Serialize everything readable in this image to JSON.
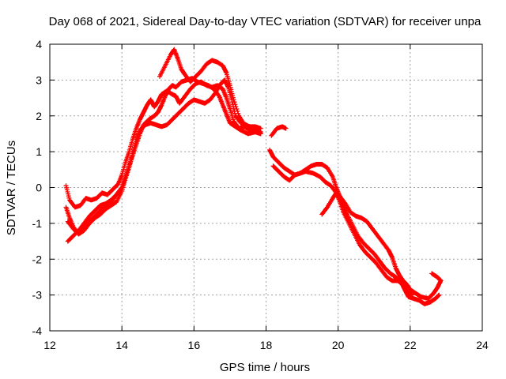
{
  "chart_data": {
    "type": "scatter",
    "title": "Day 068 of 2021, Sidereal Day-to-day VTEC variation (SDTVAR) for receiver unpa",
    "xlabel": "GPS time / hours",
    "ylabel": "SDTVAR / TECUs",
    "xlim": [
      12,
      24
    ],
    "ylim": [
      -4,
      4
    ],
    "xticks": [
      "12",
      "14",
      "16",
      "18",
      "20",
      "22",
      "24"
    ],
    "yticks": [
      "4",
      "3",
      "2",
      "1",
      "0",
      "-1",
      "-2",
      "-3",
      "-4"
    ],
    "grid": true,
    "marker": "plus",
    "color": "#ff0000",
    "series": [
      {
        "name": "track-1",
        "points": [
          [
            12.45,
            0.05
          ],
          [
            12.55,
            -0.35
          ],
          [
            12.7,
            -0.55
          ],
          [
            12.85,
            -0.5
          ],
          [
            13.0,
            -0.3
          ],
          [
            13.15,
            -0.35
          ],
          [
            13.3,
            -0.3
          ],
          [
            13.45,
            -0.15
          ],
          [
            13.6,
            -0.2
          ],
          [
            13.75,
            -0.05
          ],
          [
            13.9,
            0.1
          ],
          [
            14.0,
            0.35
          ],
          [
            14.1,
            0.7
          ],
          [
            14.2,
            1.0
          ],
          [
            14.3,
            1.35
          ],
          [
            14.4,
            1.65
          ],
          [
            14.5,
            1.9
          ],
          [
            14.6,
            2.1
          ],
          [
            14.7,
            2.3
          ],
          [
            14.8,
            2.45
          ],
          [
            14.9,
            2.25
          ],
          [
            15.0,
            2.4
          ],
          [
            15.1,
            2.6
          ],
          [
            15.25,
            2.7
          ],
          [
            15.4,
            2.6
          ],
          [
            15.5,
            2.55
          ],
          [
            15.6,
            2.35
          ],
          [
            15.75,
            2.55
          ],
          [
            15.9,
            2.75
          ],
          [
            16.05,
            2.9
          ],
          [
            16.2,
            2.95
          ],
          [
            16.35,
            2.85
          ],
          [
            16.5,
            2.8
          ],
          [
            16.65,
            2.85
          ],
          [
            16.8,
            2.75
          ],
          [
            16.9,
            2.5
          ],
          [
            17.0,
            2.2
          ],
          [
            17.1,
            1.85
          ],
          [
            17.25,
            1.65
          ],
          [
            17.4,
            1.7
          ],
          [
            17.55,
            1.6
          ],
          [
            17.7,
            1.65
          ],
          [
            17.85,
            1.55
          ]
        ]
      },
      {
        "name": "track-2",
        "points": [
          [
            12.5,
            -1.5
          ],
          [
            12.65,
            -1.35
          ],
          [
            12.8,
            -1.2
          ],
          [
            12.95,
            -1.0
          ],
          [
            13.1,
            -0.8
          ],
          [
            13.25,
            -0.65
          ],
          [
            13.4,
            -0.5
          ],
          [
            13.55,
            -0.45
          ],
          [
            13.7,
            -0.35
          ],
          [
            13.85,
            -0.2
          ],
          [
            14.0,
            0.0
          ],
          [
            14.1,
            0.3
          ],
          [
            14.2,
            0.6
          ],
          [
            14.3,
            0.9
          ],
          [
            14.4,
            1.2
          ],
          [
            14.5,
            1.5
          ],
          [
            14.6,
            1.75
          ],
          [
            14.75,
            1.9
          ],
          [
            14.9,
            2.0
          ],
          [
            15.0,
            2.1
          ],
          [
            15.1,
            2.3
          ],
          [
            15.2,
            2.55
          ],
          [
            15.3,
            2.75
          ],
          [
            15.4,
            2.85
          ],
          [
            15.5,
            2.8
          ],
          [
            15.65,
            2.95
          ],
          [
            15.8,
            3.0
          ],
          [
            15.95,
            3.05
          ],
          [
            16.1,
            2.95
          ],
          [
            16.25,
            2.9
          ],
          [
            16.4,
            2.85
          ],
          [
            16.55,
            2.75
          ],
          [
            16.7,
            2.55
          ],
          [
            16.8,
            2.3
          ],
          [
            16.9,
            2.05
          ],
          [
            17.0,
            1.8
          ],
          [
            17.15,
            1.7
          ],
          [
            17.3,
            1.6
          ],
          [
            17.5,
            1.5
          ],
          [
            17.7,
            1.55
          ],
          [
            17.85,
            1.5
          ]
        ]
      },
      {
        "name": "track-3",
        "points": [
          [
            12.5,
            -0.95
          ],
          [
            12.65,
            -1.15
          ],
          [
            12.8,
            -1.3
          ],
          [
            12.95,
            -1.2
          ],
          [
            13.1,
            -1.0
          ],
          [
            13.25,
            -0.85
          ],
          [
            13.4,
            -0.75
          ],
          [
            13.55,
            -0.6
          ],
          [
            13.7,
            -0.5
          ],
          [
            13.85,
            -0.4
          ],
          [
            14.0,
            -0.1
          ],
          [
            14.1,
            0.25
          ],
          [
            14.2,
            0.55
          ],
          [
            14.3,
            0.95
          ],
          [
            14.4,
            1.35
          ],
          [
            14.5,
            1.6
          ],
          [
            14.65,
            1.75
          ],
          [
            14.8,
            1.8
          ],
          [
            14.95,
            1.75
          ],
          [
            15.1,
            1.7
          ],
          [
            15.25,
            1.75
          ],
          [
            15.4,
            1.9
          ],
          [
            15.55,
            2.05
          ],
          [
            15.7,
            2.2
          ],
          [
            15.85,
            2.35
          ],
          [
            16.0,
            2.45
          ],
          [
            16.15,
            2.4
          ],
          [
            16.3,
            2.35
          ],
          [
            16.45,
            2.45
          ],
          [
            16.6,
            2.65
          ],
          [
            16.75,
            2.9
          ],
          [
            16.85,
            3.0
          ],
          [
            16.95,
            2.8
          ],
          [
            17.05,
            2.45
          ],
          [
            17.15,
            2.0
          ],
          [
            17.3,
            1.8
          ],
          [
            17.45,
            1.75
          ],
          [
            17.6,
            1.65
          ],
          [
            17.75,
            1.6
          ],
          [
            17.85,
            1.5
          ]
        ]
      },
      {
        "name": "track-4",
        "points": [
          [
            15.05,
            3.1
          ],
          [
            15.2,
            3.4
          ],
          [
            15.35,
            3.7
          ],
          [
            15.45,
            3.85
          ],
          [
            15.55,
            3.6
          ],
          [
            15.65,
            3.3
          ],
          [
            15.75,
            3.15
          ],
          [
            15.9,
            2.95
          ],
          [
            16.05,
            3.1
          ],
          [
            16.2,
            3.25
          ],
          [
            16.35,
            3.45
          ],
          [
            16.5,
            3.55
          ],
          [
            16.65,
            3.5
          ],
          [
            16.8,
            3.4
          ],
          [
            16.9,
            3.2
          ],
          [
            17.0,
            2.85
          ],
          [
            17.1,
            2.45
          ],
          [
            17.25,
            2.0
          ],
          [
            17.4,
            1.75
          ],
          [
            17.55,
            1.7
          ],
          [
            17.7,
            1.7
          ],
          [
            17.85,
            1.65
          ]
        ]
      },
      {
        "name": "track-5",
        "points": [
          [
            18.15,
            1.45
          ],
          [
            18.3,
            1.65
          ],
          [
            18.45,
            1.7
          ],
          [
            18.55,
            1.65
          ]
        ]
      },
      {
        "name": "track-6",
        "points": [
          [
            18.1,
            1.05
          ],
          [
            18.2,
            0.85
          ],
          [
            18.35,
            0.7
          ],
          [
            18.5,
            0.55
          ],
          [
            18.65,
            0.45
          ],
          [
            18.8,
            0.35
          ],
          [
            18.95,
            0.4
          ],
          [
            19.1,
            0.5
          ],
          [
            19.25,
            0.6
          ],
          [
            19.4,
            0.65
          ],
          [
            19.55,
            0.65
          ],
          [
            19.7,
            0.55
          ],
          [
            19.85,
            0.3
          ],
          [
            19.95,
            0.0
          ],
          [
            20.05,
            -0.25
          ],
          [
            20.15,
            -0.5
          ],
          [
            20.25,
            -0.75
          ],
          [
            20.4,
            -1.05
          ],
          [
            20.55,
            -1.35
          ],
          [
            20.7,
            -1.55
          ],
          [
            20.85,
            -1.7
          ],
          [
            21.0,
            -1.85
          ],
          [
            21.15,
            -2.05
          ],
          [
            21.3,
            -2.25
          ],
          [
            21.45,
            -2.4
          ],
          [
            21.6,
            -2.5
          ],
          [
            21.75,
            -2.65
          ],
          [
            21.85,
            -2.85
          ],
          [
            21.95,
            -3.05
          ],
          [
            22.1,
            -3.1
          ],
          [
            22.25,
            -3.15
          ],
          [
            22.4,
            -3.25
          ],
          [
            22.55,
            -3.2
          ],
          [
            22.7,
            -3.1
          ],
          [
            22.8,
            -3.0
          ]
        ]
      },
      {
        "name": "track-7",
        "points": [
          [
            18.2,
            0.6
          ],
          [
            18.35,
            0.45
          ],
          [
            18.5,
            0.3
          ],
          [
            18.65,
            0.2
          ],
          [
            18.8,
            0.35
          ],
          [
            18.95,
            0.4
          ],
          [
            19.1,
            0.45
          ],
          [
            19.3,
            0.4
          ],
          [
            19.5,
            0.3
          ],
          [
            19.65,
            0.15
          ],
          [
            19.8,
            0.05
          ],
          [
            19.95,
            -0.15
          ],
          [
            20.05,
            -0.4
          ],
          [
            20.15,
            -0.7
          ],
          [
            20.3,
            -1.0
          ],
          [
            20.45,
            -1.3
          ],
          [
            20.6,
            -1.6
          ],
          [
            20.75,
            -1.8
          ],
          [
            20.9,
            -1.95
          ],
          [
            21.05,
            -2.1
          ],
          [
            21.2,
            -2.3
          ],
          [
            21.35,
            -2.5
          ],
          [
            21.5,
            -2.6
          ],
          [
            21.65,
            -2.6
          ],
          [
            21.8,
            -2.7
          ],
          [
            21.9,
            -2.9
          ],
          [
            22.05,
            -3.0
          ]
        ]
      },
      {
        "name": "track-8",
        "points": [
          [
            19.55,
            -0.75
          ],
          [
            19.7,
            -0.55
          ],
          [
            19.85,
            -0.3
          ],
          [
            19.95,
            -0.15
          ],
          [
            20.05,
            -0.25
          ],
          [
            20.2,
            -0.45
          ],
          [
            20.35,
            -0.7
          ],
          [
            20.5,
            -0.8
          ],
          [
            20.65,
            -0.85
          ],
          [
            20.8,
            -0.95
          ],
          [
            20.95,
            -1.15
          ],
          [
            21.1,
            -1.35
          ],
          [
            21.25,
            -1.55
          ],
          [
            21.4,
            -1.75
          ],
          [
            21.5,
            -1.95
          ],
          [
            21.6,
            -2.25
          ],
          [
            21.7,
            -2.45
          ],
          [
            21.8,
            -2.6
          ],
          [
            21.9,
            -2.7
          ],
          [
            22.0,
            -2.85
          ],
          [
            22.15,
            -2.95
          ],
          [
            22.3,
            -3.05
          ],
          [
            22.5,
            -3.1
          ],
          [
            22.65,
            -2.95
          ],
          [
            22.75,
            -2.8
          ],
          [
            22.85,
            -2.6
          ],
          [
            22.75,
            -2.5
          ],
          [
            22.6,
            -2.4
          ]
        ]
      },
      {
        "name": "track-9",
        "points": [
          [
            12.45,
            -0.55
          ],
          [
            12.55,
            -0.85
          ],
          [
            12.65,
            -1.1
          ],
          [
            12.8,
            -1.3
          ],
          [
            12.95,
            -1.1
          ],
          [
            13.1,
            -0.95
          ],
          [
            13.25,
            -0.8
          ],
          [
            13.4,
            -0.65
          ],
          [
            13.55,
            -0.5
          ],
          [
            13.7,
            -0.4
          ],
          [
            13.85,
            -0.2
          ],
          [
            14.0,
            0.0
          ]
        ]
      }
    ]
  }
}
